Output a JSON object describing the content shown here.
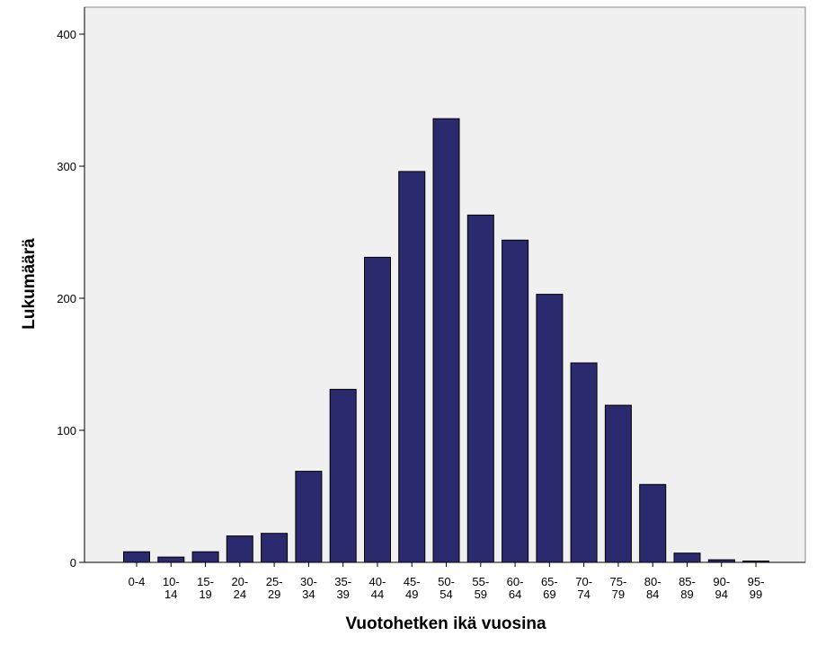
{
  "chart_data": {
    "type": "bar",
    "title": "",
    "xlabel": "Vuotohetken ikä vuosina",
    "ylabel": "Lukumäärä",
    "ylim": [
      0,
      400
    ],
    "yticks": [
      0,
      100,
      200,
      300,
      400
    ],
    "grid": false,
    "categories": [
      [
        "0-4",
        ""
      ],
      [
        "10-",
        "14"
      ],
      [
        "15-",
        "19"
      ],
      [
        "20-",
        "24"
      ],
      [
        "25-",
        "29"
      ],
      [
        "30-",
        "34"
      ],
      [
        "35-",
        "39"
      ],
      [
        "40-",
        "44"
      ],
      [
        "45-",
        "49"
      ],
      [
        "50-",
        "54"
      ],
      [
        "55-",
        "59"
      ],
      [
        "60-",
        "64"
      ],
      [
        "65-",
        "69"
      ],
      [
        "70-",
        "74"
      ],
      [
        "75-",
        "79"
      ],
      [
        "80-",
        "84"
      ],
      [
        "85-",
        "89"
      ],
      [
        "90-",
        "94"
      ],
      [
        "95-",
        "99"
      ]
    ],
    "values": [
      8,
      4,
      8,
      20,
      22,
      69,
      131,
      231,
      296,
      336,
      263,
      244,
      203,
      151,
      119,
      59,
      7,
      2,
      1
    ],
    "colors": {
      "bar_fill": "#2b2a6e",
      "bar_stroke": "#000000",
      "plot_background": "#f0f0f0"
    }
  }
}
